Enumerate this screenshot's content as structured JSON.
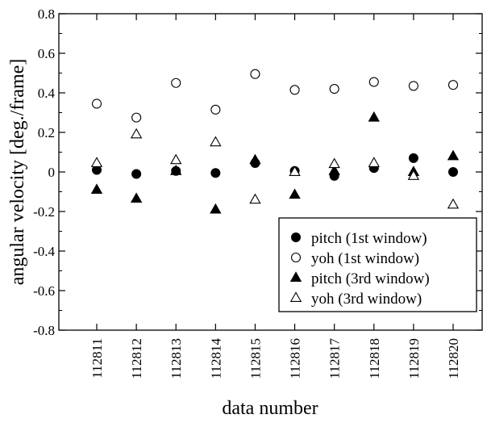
{
  "chart_data": {
    "type": "scatter",
    "xlabel": "data number",
    "ylabel": "angular velocity [deg./frame]",
    "categories": [
      "112811",
      "112812",
      "112813",
      "112814",
      "112815",
      "112816",
      "112817",
      "112818",
      "112819",
      "112820"
    ],
    "ylim": [
      -0.8,
      0.8
    ],
    "yticks": [
      "-0.8",
      "-0.6",
      "-0.4",
      "-0.2",
      "0",
      "0.2",
      "0.4",
      "0.6",
      "0.8"
    ],
    "grid": false,
    "legend_position": "bottom-right",
    "series": [
      {
        "name": "pitch (1st window)",
        "marker": "filled-circle",
        "values": [
          0.01,
          -0.01,
          0.005,
          -0.005,
          0.045,
          0.005,
          -0.02,
          0.02,
          0.07,
          0.0
        ]
      },
      {
        "name": "yoh (1st window)",
        "marker": "open-circle",
        "values": [
          0.345,
          0.275,
          0.45,
          0.315,
          0.495,
          0.415,
          0.42,
          0.455,
          0.435,
          0.44
        ]
      },
      {
        "name": "pitch (3rd window)",
        "marker": "filled-triangle",
        "values": [
          -0.09,
          -0.135,
          0.005,
          -0.19,
          0.06,
          -0.115,
          0.005,
          0.275,
          0.0,
          0.08
        ]
      },
      {
        "name": "yoh (3rd window)",
        "marker": "open-triangle",
        "values": [
          0.045,
          0.19,
          0.06,
          0.15,
          -0.14,
          0.0,
          0.04,
          0.045,
          -0.02,
          -0.165
        ]
      }
    ]
  }
}
